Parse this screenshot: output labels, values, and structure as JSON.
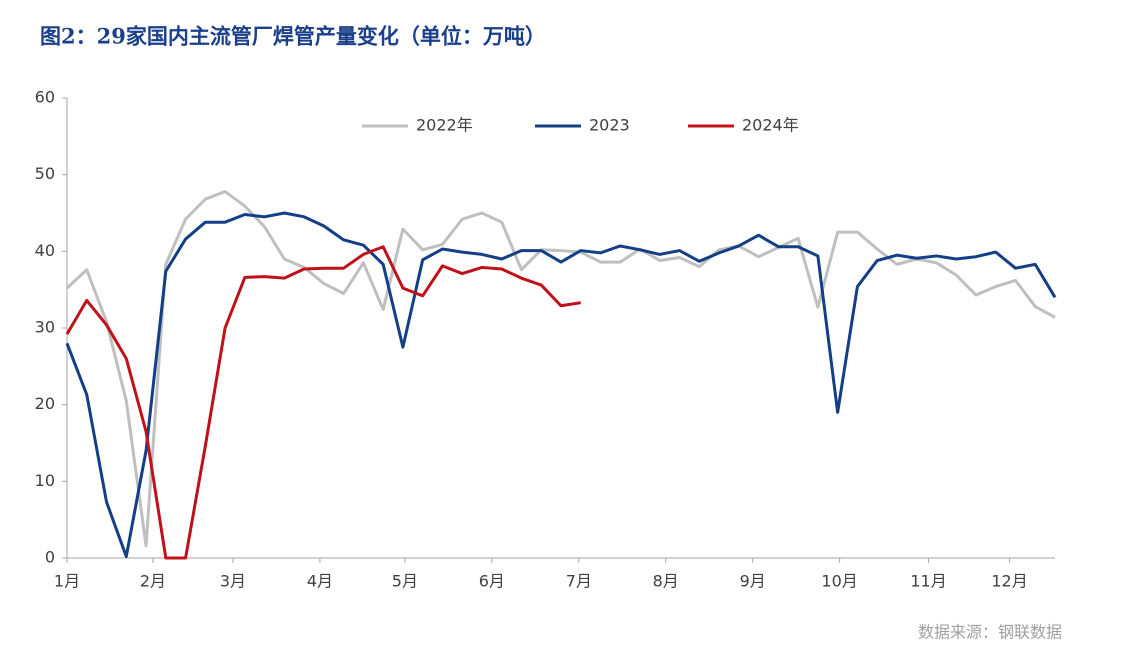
{
  "chart_data": {
    "type": "line",
    "title": "图2：29家国内主流管厂焊管产量变化（单位：万吨）",
    "source": "数据来源：钢联数据",
    "x": [
      1,
      2,
      3,
      4,
      5,
      6,
      7,
      8,
      9,
      10,
      11,
      12,
      13,
      14,
      15,
      16,
      17,
      18,
      19,
      20,
      21,
      22,
      23,
      24,
      25,
      26,
      27,
      28,
      29,
      30,
      31,
      32,
      33,
      34,
      35,
      36,
      37,
      38,
      39,
      40,
      41,
      42,
      43,
      44,
      45,
      46,
      47,
      48,
      49,
      50,
      51
    ],
    "xlim": [
      1,
      51
    ],
    "xticks": [
      {
        "value": 1,
        "label": "1月"
      },
      {
        "value": 5.35,
        "label": "2月"
      },
      {
        "value": 9.4,
        "label": "3月"
      },
      {
        "value": 13.8,
        "label": "4月"
      },
      {
        "value": 18.1,
        "label": "5月"
      },
      {
        "value": 22.5,
        "label": "6月"
      },
      {
        "value": 26.9,
        "label": "7月"
      },
      {
        "value": 31.3,
        "label": "8月"
      },
      {
        "value": 35.7,
        "label": "9月"
      },
      {
        "value": 40.1,
        "label": "10月"
      },
      {
        "value": 44.6,
        "label": "11月"
      },
      {
        "value": 48.7,
        "label": "12月"
      }
    ],
    "ylim": [
      0,
      60
    ],
    "yticks": [
      0,
      10,
      20,
      30,
      40,
      50,
      60
    ],
    "grid": false,
    "legend": "top",
    "series": [
      {
        "name": "2022年",
        "color": "#bfbfbf",
        "values": [
          35.2,
          37.6,
          30.8,
          20.5,
          1.6,
          38.3,
          44.2,
          46.8,
          47.8,
          45.9,
          43.2,
          39,
          37.9,
          35.8,
          34.5,
          38.5,
          32.4,
          42.9,
          40.2,
          40.9,
          44.2,
          45,
          43.8,
          37.6,
          40.2,
          40.1,
          39.9,
          38.6,
          38.6,
          40.3,
          38.8,
          39.2,
          38,
          40.2,
          40.7,
          39.3,
          40.5,
          41.7,
          32.7,
          42.5,
          42.5,
          40.3,
          38.3,
          39,
          38.5,
          36.9,
          34.3,
          35.4,
          36.2,
          32.8,
          31.4
        ]
      },
      {
        "name": "2023",
        "color": "#123f86",
        "values": [
          28,
          21.3,
          7.3,
          0.2,
          14,
          37.4,
          41.6,
          43.8,
          43.8,
          44.8,
          44.5,
          45,
          44.5,
          43.3,
          41.5,
          40.8,
          38.3,
          27.5,
          38.9,
          40.3,
          39.9,
          39.6,
          39,
          40.1,
          40.1,
          38.6,
          40.1,
          39.8,
          40.7,
          40.2,
          39.6,
          40.1,
          38.7,
          39.8,
          40.7,
          42.1,
          40.6,
          40.6,
          39.4,
          19,
          35.4,
          38.8,
          39.5,
          39.1,
          39.4,
          39,
          39.3,
          39.9,
          37.8,
          38.3,
          34
        ]
      },
      {
        "name": "2024年",
        "color": "#c0111a",
        "values": [
          29.2,
          33.6,
          30.4,
          26,
          16.5,
          0,
          0,
          14.6,
          30,
          36.6,
          36.7,
          36.5,
          37.7,
          37.8,
          37.8,
          39.6,
          40.6,
          35.2,
          34.2,
          38.1,
          37.1,
          37.9,
          37.7,
          36.5,
          35.6,
          32.9,
          33.3,
          null,
          null,
          null,
          null,
          null,
          null,
          null,
          null,
          null,
          null,
          null,
          null,
          null,
          null,
          null,
          null,
          null,
          null,
          null,
          null,
          null,
          null,
          null,
          null
        ]
      }
    ]
  }
}
